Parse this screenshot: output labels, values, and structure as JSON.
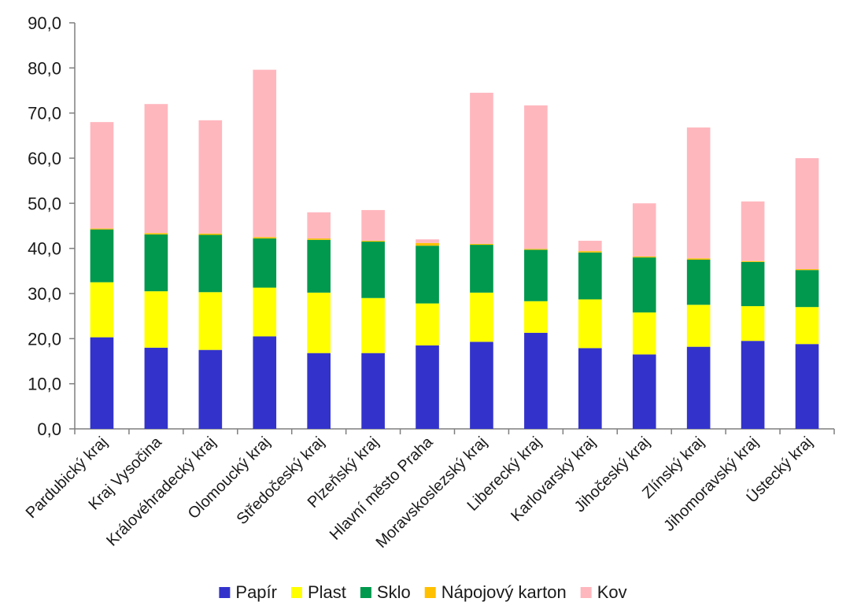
{
  "chart_data": {
    "type": "bar",
    "stacked": true,
    "categories": [
      "Pardubický kraj",
      "Kraj Vysočina",
      "Královéhradecký kraj",
      "Olomoucký kraj",
      "Středočeský kraj",
      "Plzeňský kraj",
      "Hlavní město Praha",
      "Moravskoslezský kraj",
      "Liberecký kraj",
      "Karlovarský kraj",
      "Jihočeský kraj",
      "Zlínský kraj",
      "Jihomoravský kraj",
      "Ústecký kraj"
    ],
    "series": [
      {
        "name": "Papír",
        "color": "#3333cc",
        "values": [
          20.3,
          18.0,
          17.5,
          20.5,
          16.8,
          16.8,
          18.5,
          19.3,
          21.3,
          17.9,
          16.5,
          18.2,
          19.5,
          18.8
        ]
      },
      {
        "name": "Plast",
        "color": "#ffff00",
        "values": [
          12.2,
          12.5,
          12.8,
          10.8,
          13.4,
          12.2,
          9.3,
          10.9,
          7.0,
          10.8,
          9.3,
          9.3,
          7.7,
          8.2
        ]
      },
      {
        "name": "Sklo",
        "color": "#00994d",
        "values": [
          11.7,
          12.6,
          12.7,
          10.9,
          11.7,
          12.5,
          12.8,
          10.6,
          11.4,
          10.4,
          12.2,
          10.0,
          9.8,
          8.2
        ]
      },
      {
        "name": "Nápojový karton",
        "color": "#ffc000",
        "values": [
          0.2,
          0.3,
          0.3,
          0.3,
          0.3,
          0.2,
          0.6,
          0.2,
          0.2,
          0.3,
          0.2,
          0.3,
          0.2,
          0.2
        ]
      },
      {
        "name": "Kov",
        "color": "#ffb7be",
        "values": [
          23.6,
          28.6,
          25.1,
          37.1,
          5.8,
          6.8,
          0.8,
          33.5,
          31.8,
          2.3,
          11.8,
          29.0,
          13.2,
          24.6
        ]
      }
    ],
    "ylim": [
      0,
      90
    ],
    "yticks": [
      "0,0",
      "10,0",
      "20,0",
      "30,0",
      "40,0",
      "50,0",
      "60,0",
      "70,0",
      "80,0",
      "90,0"
    ],
    "grid": false,
    "legend": "bottom"
  }
}
